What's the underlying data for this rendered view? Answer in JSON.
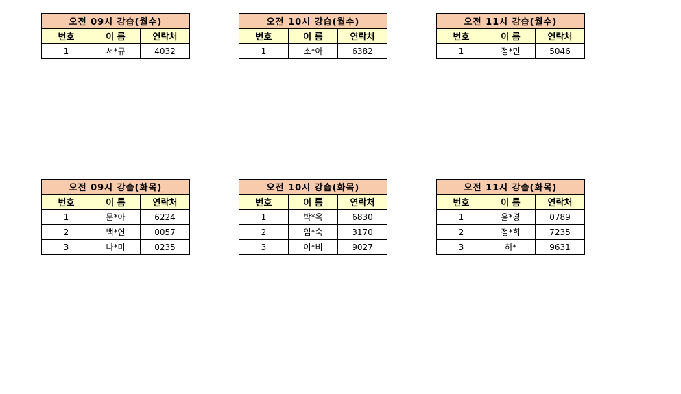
{
  "headers": [
    "번호",
    "이 름",
    "연락처"
  ],
  "tables": [
    {
      "title": "오전 09시 강습(월수)",
      "rows": [
        [
          "1",
          "서*규",
          "4032"
        ]
      ]
    },
    {
      "title": "오전 10시 강습(월수)",
      "rows": [
        [
          "1",
          "소*아",
          "6382"
        ]
      ]
    },
    {
      "title": "오전 11시 강습(월수)",
      "rows": [
        [
          "1",
          "정*민",
          "5046"
        ]
      ]
    },
    {
      "title": "오전 09시 강습(화목)",
      "rows": [
        [
          "1",
          "문*아",
          "6224"
        ],
        [
          "2",
          "백*연",
          "0057"
        ],
        [
          "3",
          "나*미",
          "0235"
        ]
      ]
    },
    {
      "title": "오전 10시 강습(화목)",
      "rows": [
        [
          "1",
          "박*옥",
          "6830"
        ],
        [
          "2",
          "임*숙",
          "3170"
        ],
        [
          "3",
          "이*비",
          "9027"
        ]
      ]
    },
    {
      "title": "오전 11시 강습(화목)",
      "rows": [
        [
          "1",
          "윤*경",
          "0789"
        ],
        [
          "2",
          "정*희",
          "7235"
        ],
        [
          "3",
          "허*",
          "9631"
        ]
      ]
    }
  ],
  "colors": {
    "title_bg": "#F8CBAD",
    "header_bg": "#FFFFCC"
  }
}
